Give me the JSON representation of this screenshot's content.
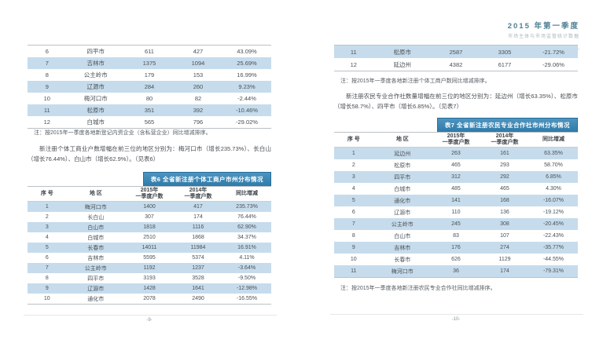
{
  "colors": {
    "banner_blue": "#3886b5",
    "row_highlight": "#c6dcec",
    "title_teal": "#4e7f91"
  },
  "page_left": {
    "top_table": {
      "rows": [
        [
          "6",
          "四平市",
          "611",
          "427",
          "43.09%"
        ],
        [
          "7",
          "吉林市",
          "1375",
          "1094",
          "25.69%"
        ],
        [
          "8",
          "公主岭市",
          "179",
          "153",
          "16.99%"
        ],
        [
          "9",
          "辽源市",
          "284",
          "260",
          "9.23%"
        ],
        [
          "10",
          "梅河口市",
          "80",
          "82",
          "-2.44%"
        ],
        [
          "11",
          "松原市",
          "351",
          "392",
          "-10.46%"
        ],
        [
          "12",
          "白城市",
          "565",
          "796",
          "-29.02%"
        ]
      ]
    },
    "note": "注：按2015年一季度各地新登记内资企业（含私营企业）同比增减排序。",
    "paragraph": "新注册个体工商业户数增幅在前三位的地区分别为：梅河口市（增长235.73%）、长白山（增长76.44%）、白山市（增长62.9%）。（见表6）",
    "table": {
      "title": "表6 全省新注册个体工商户市州分布情况",
      "headers": [
        "序  号",
        "地  区",
        "2015年\n一季度户数",
        "2014年\n一季度户数",
        "同比增减"
      ],
      "rows": [
        [
          "1",
          "梅河口市",
          "1400",
          "417",
          "235.73%"
        ],
        [
          "2",
          "长白山",
          "307",
          "174",
          "76.44%"
        ],
        [
          "3",
          "白山市",
          "1818",
          "1116",
          "62.90%"
        ],
        [
          "4",
          "白城市",
          "2510",
          "1868",
          "34.37%"
        ],
        [
          "5",
          "长春市",
          "14011",
          "11984",
          "16.91%"
        ],
        [
          "6",
          "吉林市",
          "5595",
          "5374",
          "4.11%"
        ],
        [
          "7",
          "公主岭市",
          "1192",
          "1237",
          "-3.64%"
        ],
        [
          "8",
          "四平市",
          "3193",
          "3528",
          "-9.50%"
        ],
        [
          "9",
          "辽源市",
          "1428",
          "1641",
          "-12.98%"
        ],
        [
          "10",
          "通化市",
          "2078",
          "2490",
          "-16.55%"
        ]
      ]
    },
    "page_number": "-9-"
  },
  "page_right": {
    "header": {
      "title": "2015 年第一季度",
      "subtitle": "市场主体与市场监管统计数据"
    },
    "top_table": {
      "rows": [
        [
          "11",
          "松原市",
          "2587",
          "3305",
          "-21.72%"
        ],
        [
          "12",
          "延边州",
          "4382",
          "6177",
          "-29.06%"
        ]
      ]
    },
    "note": "注：按2015年一季度各地新注册个体工商户数同比增减排序。",
    "paragraph": "新注册农民专业合作社数量增幅在前三位的地区分别为：延边州（增长63.35%）、松原市（增长58.7%）、四平市（增长6.85%）。（见表7）",
    "table": {
      "title": "表7 全省新注册农民专业合作社市州分布情况",
      "headers": [
        "序  号",
        "地  区",
        "2015年\n一季度户数",
        "2014年\n一季度户数",
        "同比增减"
      ],
      "rows": [
        [
          "1",
          "延边州",
          "263",
          "161",
          "63.35%"
        ],
        [
          "2",
          "松原市",
          "465",
          "293",
          "58.70%"
        ],
        [
          "3",
          "四平市",
          "312",
          "292",
          "6.85%"
        ],
        [
          "4",
          "白城市",
          "485",
          "465",
          "4.30%"
        ],
        [
          "5",
          "通化市",
          "141",
          "168",
          "-16.07%"
        ],
        [
          "6",
          "辽源市",
          "110",
          "136",
          "-19.12%"
        ],
        [
          "7",
          "公主岭市",
          "245",
          "308",
          "-20.45%"
        ],
        [
          "8",
          "白山市",
          "83",
          "107",
          "-22.43%"
        ],
        [
          "9",
          "吉林市",
          "176",
          "274",
          "-35.77%"
        ],
        [
          "10",
          "长春市",
          "626",
          "1129",
          "-44.55%"
        ],
        [
          "11",
          "梅河口市",
          "36",
          "174",
          "-79.31%"
        ]
      ]
    },
    "note2": "注：按2015年一季度各地新注册农民专业合作社同比增减排序。",
    "page_number": "-10-"
  }
}
